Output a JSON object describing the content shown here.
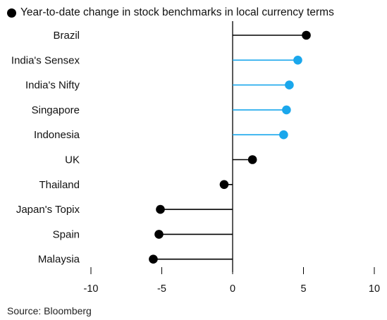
{
  "chart_data": {
    "type": "lollipop",
    "legend": "Year-to-date change in stock benchmarks in local currency terms",
    "source": "Source: Bloomberg",
    "categories": [
      "Brazil",
      "India's Sensex",
      "India's Nifty",
      "Singapore",
      "Indonesia",
      "UK",
      "Thailand",
      "Japan's Topix",
      "Spain",
      "Malaysia"
    ],
    "values": [
      5.2,
      4.6,
      4.0,
      3.8,
      3.6,
      1.4,
      -0.6,
      -5.1,
      -5.2,
      -5.6
    ],
    "highlighted": [
      false,
      true,
      true,
      true,
      true,
      false,
      false,
      false,
      false,
      false
    ],
    "xlim": [
      -10,
      10
    ],
    "xticks": [
      -10,
      -5,
      0,
      5,
      10
    ],
    "xtick_labels": [
      "-10",
      "-5",
      "0",
      "5",
      "10"
    ],
    "colors": {
      "default": "#000000",
      "highlight": "#1aa7ec",
      "axis": "#000000"
    },
    "grid": false,
    "legend_position": "top-left"
  }
}
